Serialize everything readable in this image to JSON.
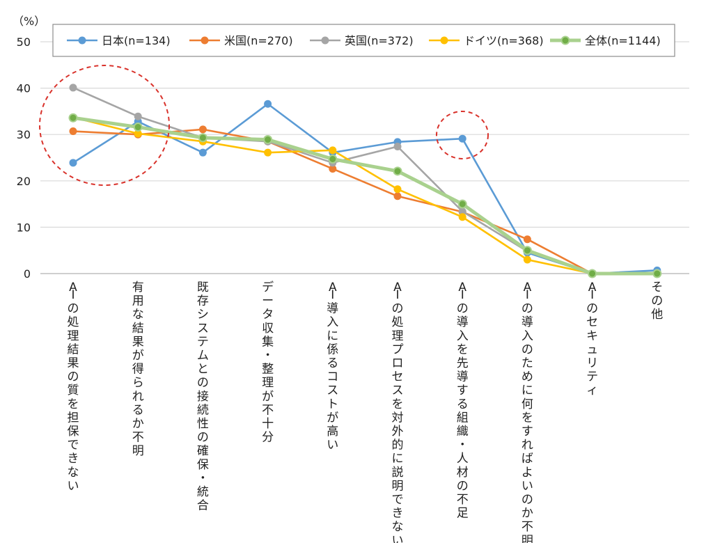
{
  "chart_data": {
    "type": "line",
    "unit_label": "（%）",
    "ylim": [
      0,
      50
    ],
    "yticks": [
      0,
      10,
      20,
      30,
      40,
      50
    ],
    "grid": true,
    "legend_position": "top",
    "categories": [
      "AIの処理結果の質を担保できない",
      "有用な結果が得られるか不明",
      "既存システムとの接続性の確保・統合",
      "データ収集・整理が不十分",
      "AI導入に係るコストが高い",
      "AIの処理プロセスを対外的に説明できない",
      "AIの導入を先導する組織・人材の不足",
      "AIの導入のために何をすればよいのか不明",
      "AIのセキュリティ",
      "その他"
    ],
    "series": [
      {
        "name": "日本(n=134)",
        "color": "#5b9bd5",
        "values": [
          23.9,
          32.8,
          26.1,
          36.6,
          26.1,
          28.4,
          29.1,
          4.5,
          0,
          0.7
        ]
      },
      {
        "name": "米国(n=270)",
        "color": "#ed7d31",
        "values": [
          30.7,
          30.0,
          31.1,
          28.5,
          22.6,
          16.7,
          13.3,
          7.4,
          0,
          0
        ]
      },
      {
        "name": "英国(n=372)",
        "color": "#a5a5a5",
        "values": [
          40.1,
          33.9,
          29.3,
          28.5,
          23.9,
          27.4,
          13.4,
          4.8,
          0,
          0
        ]
      },
      {
        "name": "ドイツ(n=368)",
        "color": "#ffc000",
        "values": [
          33.7,
          30.2,
          28.5,
          26.1,
          26.6,
          18.2,
          12.2,
          3.0,
          0,
          0
        ]
      },
      {
        "name": "全体(n=1144)",
        "color": "#a9d18e",
        "values": [
          33.6,
          31.6,
          29.3,
          28.9,
          24.7,
          22.1,
          15.0,
          5.0,
          0,
          0
        ]
      }
    ],
    "annotations": [
      {
        "type": "dashed-circle",
        "color": "#d9322b",
        "around": "AIの処理結果の質を担保できない / 有用な結果が得られるか不明"
      },
      {
        "type": "dashed-circle",
        "color": "#d9322b",
        "around": "AIの導入を先導する組織・人材の不足"
      }
    ]
  }
}
